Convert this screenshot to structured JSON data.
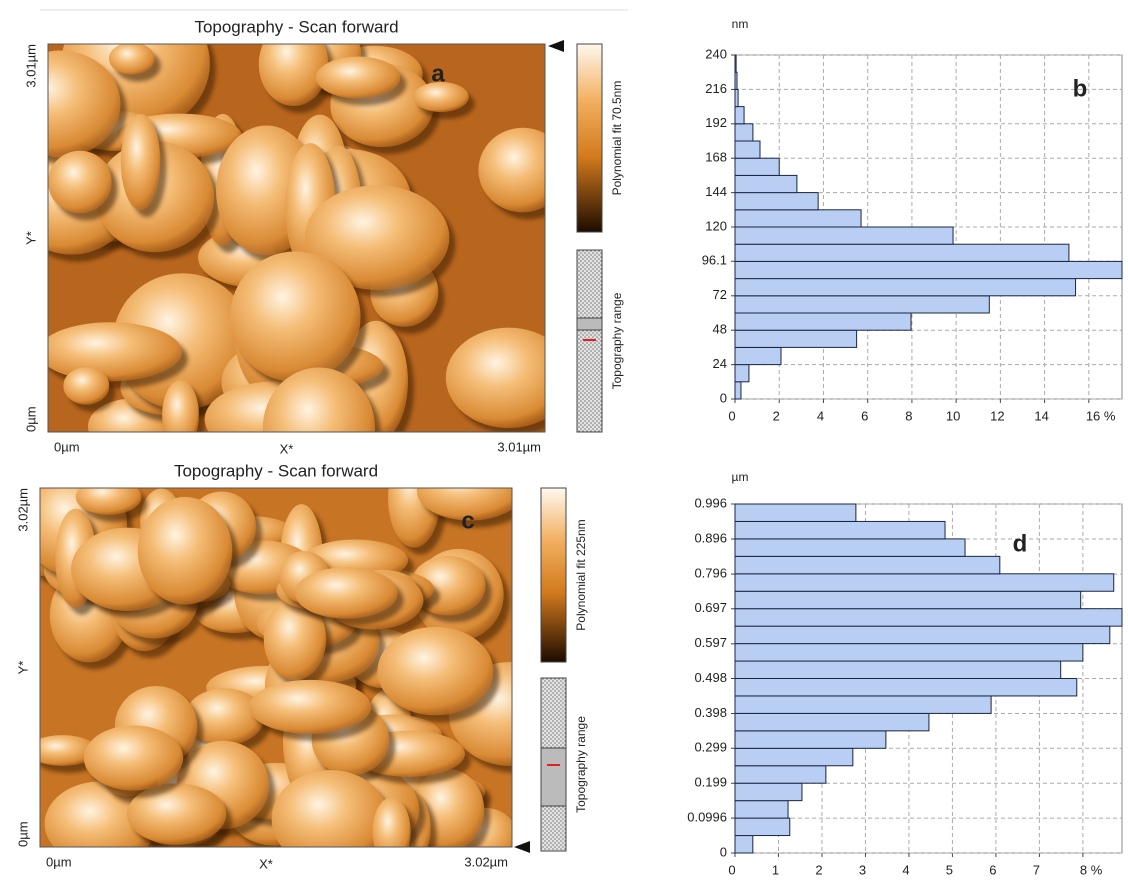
{
  "chart_data": [
    {
      "type": "histogram",
      "orientation": "horizontal",
      "annotation": "b",
      "y_unit": "nm",
      "bins": [
        0,
        12,
        24,
        36,
        48,
        60,
        72,
        84,
        96,
        108,
        120,
        132,
        144,
        156,
        168,
        180,
        192,
        204,
        216,
        228,
        240
      ],
      "values": [
        0.27,
        0.63,
        2.08,
        5.5,
        7.96,
        11.5,
        15.4,
        17.5,
        15.1,
        9.86,
        5.7,
        3.76,
        2.8,
        2.0,
        1.13,
        0.81,
        0.41,
        0.14,
        0.09,
        0.05
      ],
      "color": "#b9cef3",
      "edgecolor": "#1c2540",
      "xlim": [
        0,
        17.5
      ],
      "xticks": [
        0,
        2,
        4,
        6,
        8,
        10,
        12,
        14,
        {
          "value": 16,
          "label": "16 %"
        }
      ],
      "ylim": [
        0,
        240
      ],
      "yticks": [
        0,
        24,
        48,
        72,
        96.1,
        120,
        144,
        168,
        192,
        216,
        240
      ],
      "grid": true
    },
    {
      "type": "histogram",
      "orientation": "horizontal",
      "annotation": "d",
      "y_unit": "µm",
      "bins": [
        0,
        0.0498,
        0.0996,
        0.1494,
        0.1992,
        0.249,
        0.2988,
        0.3486,
        0.3984,
        0.4482,
        0.498,
        0.5478,
        0.5976,
        0.6474,
        0.6972,
        0.747,
        0.7968,
        0.8466,
        0.8964,
        0.9462,
        0.996
      ],
      "values": [
        0.41,
        1.26,
        1.22,
        1.54,
        2.09,
        2.71,
        3.47,
        4.46,
        5.89,
        7.86,
        7.49,
        8.0,
        8.62,
        8.9,
        7.95,
        8.71,
        6.09,
        5.29,
        4.83,
        2.78
      ],
      "color": "#b9cef3",
      "edgecolor": "#1c2540",
      "xlim": [
        0,
        8.9
      ],
      "xticks": [
        0,
        1,
        2,
        3,
        4,
        5,
        6,
        7,
        {
          "value": 8,
          "label": "8 %"
        }
      ],
      "ylim": [
        0,
        0.996
      ],
      "yticks": [
        0,
        0.0996,
        0.199,
        0.299,
        0.398,
        0.498,
        0.597,
        0.697,
        0.796,
        0.896,
        0.996
      ],
      "grid": true
    }
  ],
  "images": [
    {
      "title": "Topography - Scan forward",
      "label": "a",
      "x_label": "X*",
      "y_label": "Y*",
      "x_start": "0µm",
      "x_end": "3.01µm",
      "y_start": "0µm",
      "y_end": "3.01µm",
      "colorbar_label": "Polynomial fit 70.5nm",
      "range_label": "Topography range"
    },
    {
      "title": "Topography - Scan forward",
      "label": "c",
      "x_label": "X*",
      "y_label": "Y*",
      "x_start": "0µm",
      "x_end": "3.02µm",
      "y_start": "0µm",
      "y_end": "3.02µm",
      "colorbar_label": "Polynomial fit 225nm",
      "range_label": "Topography range"
    }
  ]
}
